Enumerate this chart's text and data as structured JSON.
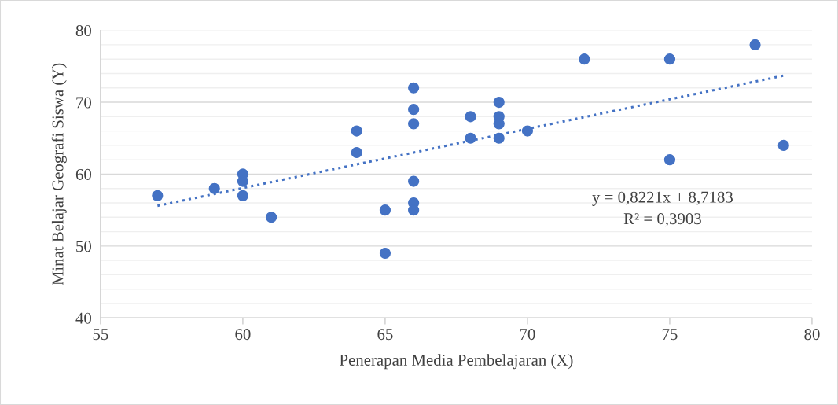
{
  "chart_data": {
    "type": "scatter",
    "xlabel": "Penerapan Media Pembelajaran (X)",
    "ylabel": "Minat Belajar Geografi Siswa (Y)",
    "series": [
      {
        "color": "#4472c4",
        "marker": "circle",
        "x": [
          57,
          59,
          60,
          60,
          60,
          61,
          64,
          64,
          65,
          65,
          66,
          66,
          66,
          66,
          66,
          66,
          68,
          68,
          69,
          69,
          69,
          69,
          70,
          72,
          75,
          75,
          78,
          79
        ],
        "values": [
          57,
          58,
          60,
          59,
          57,
          54,
          66,
          63,
          55,
          49,
          72,
          69,
          67,
          59,
          56,
          55,
          68,
          65,
          70,
          68,
          67,
          65,
          66,
          76,
          76,
          62,
          78,
          64
        ]
      },
      {
        "type": "line",
        "color": "#4472c4",
        "line_style": "dotted",
        "marker": "none",
        "x": [
          57,
          79
        ],
        "values": [
          55.6,
          73.7
        ]
      }
    ],
    "xlim": [
      55,
      80
    ],
    "xticks": [
      55,
      60,
      65,
      70,
      75,
      80
    ],
    "ylim": [
      40,
      80
    ],
    "yticks": [
      40,
      {
        "value": 42,
        "label": null
      },
      {
        "value": 44,
        "label": null
      },
      {
        "value": 46,
        "label": null
      },
      {
        "value": 48,
        "label": null
      },
      50,
      {
        "value": 52,
        "label": null
      },
      {
        "value": 54,
        "label": null
      },
      {
        "value": 56,
        "label": null
      },
      {
        "value": 58,
        "label": null
      },
      60,
      {
        "value": 62,
        "label": null
      },
      {
        "value": 64,
        "label": null
      },
      {
        "value": 66,
        "label": null
      },
      {
        "value": 68,
        "label": null
      },
      70,
      {
        "value": 72,
        "label": null
      },
      {
        "value": 74,
        "label": null
      },
      {
        "value": 76,
        "label": null
      },
      {
        "value": 78,
        "label": null
      },
      80
    ],
    "grid": "y",
    "legend": false,
    "annotations": [
      "y = 0,8221x + 8,7183",
      "R² = 0,3903"
    ]
  }
}
